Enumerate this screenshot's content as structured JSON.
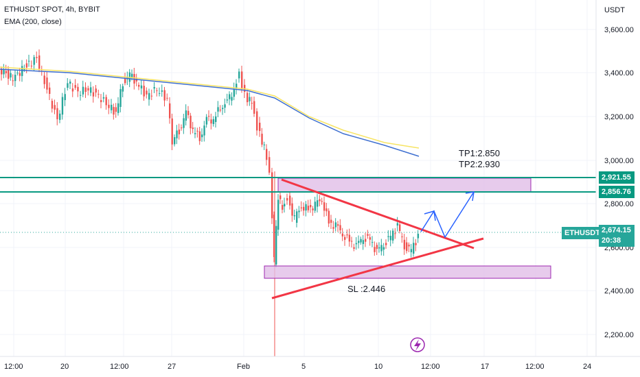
{
  "header": {
    "title": "ETHUSDT SPOT, 4h, BYBIT",
    "indicator": "EMA (200, close)"
  },
  "price_axis": {
    "unit": "USDT",
    "ticks": [
      "3,600.00",
      "3,400.00",
      "3,200.00",
      "3,000.00",
      "2,800.00",
      "2,600.00",
      "2,400.00",
      "2,200.00"
    ]
  },
  "time_axis": {
    "ticks": [
      "12:00",
      "20",
      "12:00",
      "27",
      "Feb",
      "5",
      "10",
      "12:00",
      "17",
      "12:00",
      "24"
    ]
  },
  "price_tags": {
    "level1": "2,921.55",
    "level2": "2,856.76",
    "symbol": "ETHUSDT",
    "last_price": "2,674.15",
    "countdown": "20:38"
  },
  "annotations": {
    "tp1": "TP1:2.850",
    "tp2": "TP2:2.930",
    "sl": "SL :2.446"
  },
  "colors": {
    "up": "#26a69a",
    "down": "#ef5350",
    "ema": "#3e6fd0",
    "ema_alt": "#f7e463",
    "zone": "#e1bee7",
    "zone_border": "#9c27b0",
    "level_line": "#089981",
    "trend_line": "#f23645",
    "arrow": "#2962ff"
  },
  "icons": {
    "lightning": "lightning-icon"
  },
  "chart_data": {
    "type": "candlestick",
    "y_range": [
      2100,
      3700
    ],
    "ema200_path": [
      [
        0,
        3420
      ],
      [
        120,
        3380
      ],
      [
        260,
        3320
      ],
      [
        380,
        3260
      ],
      [
        460,
        3150
      ],
      [
        600,
        3030
      ]
    ],
    "levels": [
      2921.55,
      2856.76
    ],
    "supply_zone": [
      2856.76,
      2921.55
    ],
    "demand_zone": [
      2470,
      2525
    ],
    "current_price": 2674.15,
    "take_profit": [
      2850,
      2930
    ],
    "stop_loss": 2446
  }
}
